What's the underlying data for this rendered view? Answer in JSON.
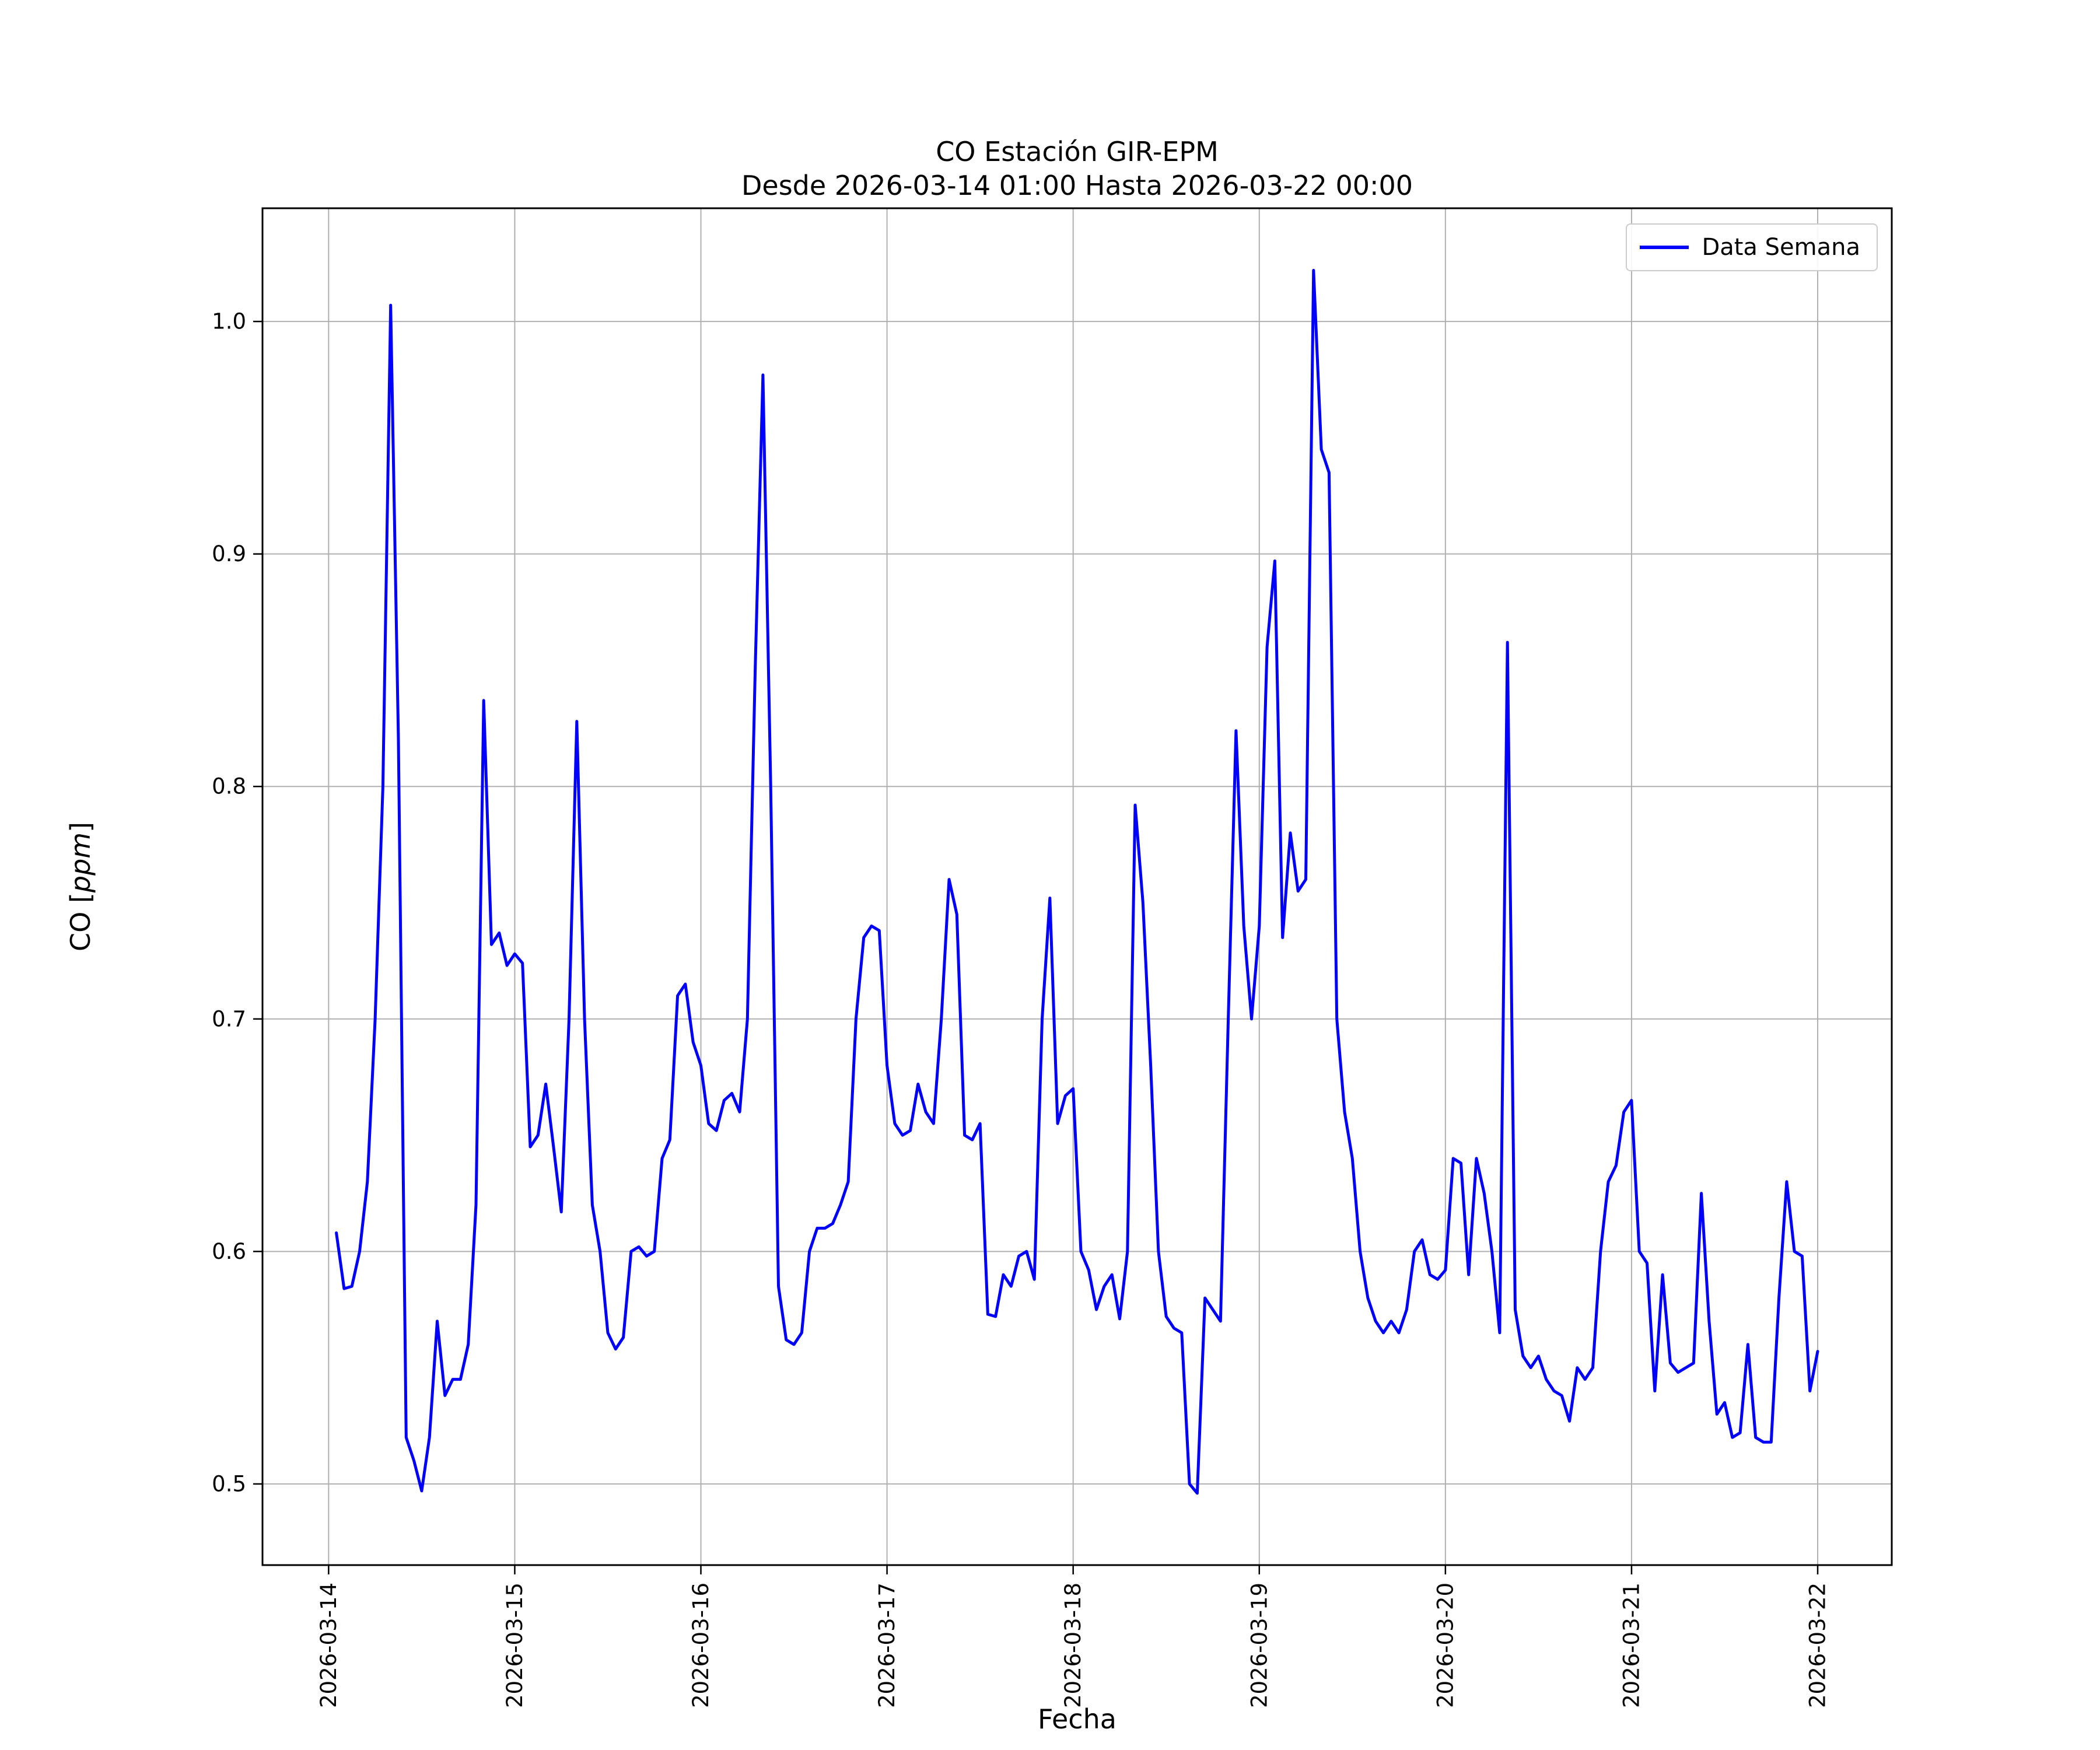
{
  "title_line1": "CO Estación GIR-EPM",
  "title_line2": "Desde 2026-03-14 01:00 Hasta 2026-03-22 00:00",
  "xlabel": "Fecha",
  "ylabel_prefix": "CO [",
  "ylabel_italic": "ppm",
  "ylabel_suffix": "]",
  "legend": {
    "label": "Data Semana"
  },
  "colors": {
    "line": "#0000ff",
    "grid": "#b0b0b0",
    "axis": "#000000",
    "legend_border": "#cccccc",
    "background": "#ffffff"
  },
  "chart_data": {
    "type": "line",
    "title": "CO Estación GIR-EPM — Desde 2026-03-14 01:00 Hasta 2026-03-22 00:00",
    "xlabel": "Fecha",
    "ylabel": "CO [ppm]",
    "legend_position": "upper right",
    "grid": true,
    "series_name": "Data Semana",
    "x_tick_labels": [
      "2026-03-14",
      "2026-03-15",
      "2026-03-16",
      "2026-03-17",
      "2026-03-18",
      "2026-03-19",
      "2026-03-20",
      "2026-03-21",
      "2026-03-22"
    ],
    "x_tick_days": [
      14,
      15,
      16,
      17,
      18,
      19,
      20,
      21,
      22
    ],
    "y_ticks": [
      0.5,
      0.6,
      0.7,
      0.8,
      0.9,
      1.0
    ],
    "xlim_days": [
      13.6448,
      22.3979
    ],
    "ylim": [
      0.4651,
      1.0487
    ],
    "x_unit": "hours since 2026-03-14 00:00, hourly samples from 01:00 on 03-14 to 00:00 on 03-22",
    "x_start_hour": 1,
    "values": [
      0.608,
      0.584,
      0.585,
      0.6,
      0.63,
      0.7,
      0.8,
      1.007,
      0.82,
      0.52,
      0.51,
      0.497,
      0.52,
      0.57,
      0.538,
      0.545,
      0.545,
      0.56,
      0.62,
      0.837,
      0.732,
      0.737,
      0.723,
      0.728,
      0.724,
      0.645,
      0.65,
      0.672,
      0.645,
      0.617,
      0.7,
      0.828,
      0.7,
      0.62,
      0.6,
      0.565,
      0.558,
      0.563,
      0.6,
      0.602,
      0.598,
      0.6,
      0.64,
      0.648,
      0.71,
      0.715,
      0.69,
      0.68,
      0.655,
      0.652,
      0.665,
      0.668,
      0.66,
      0.7,
      0.85,
      0.977,
      0.8,
      0.585,
      0.562,
      0.56,
      0.565,
      0.6,
      0.61,
      0.61,
      0.612,
      0.62,
      0.63,
      0.7,
      0.735,
      0.74,
      0.738,
      0.68,
      0.655,
      0.65,
      0.652,
      0.672,
      0.66,
      0.655,
      0.7,
      0.76,
      0.745,
      0.65,
      0.648,
      0.655,
      0.573,
      0.572,
      0.59,
      0.585,
      0.598,
      0.6,
      0.588,
      0.7,
      0.752,
      0.655,
      0.667,
      0.67,
      0.6,
      0.592,
      0.575,
      0.585,
      0.59,
      0.571,
      0.6,
      0.792,
      0.75,
      0.68,
      0.6,
      0.572,
      0.567,
      0.565,
      0.5,
      0.496,
      0.58,
      0.575,
      0.57,
      0.7,
      0.824,
      0.74,
      0.7,
      0.74,
      0.86,
      0.897,
      0.735,
      0.78,
      0.755,
      0.76,
      1.022,
      0.945,
      0.935,
      0.7,
      0.66,
      0.64,
      0.6,
      0.58,
      0.57,
      0.565,
      0.57,
      0.565,
      0.575,
      0.6,
      0.605,
      0.59,
      0.588,
      0.592,
      0.64,
      0.638,
      0.59,
      0.64,
      0.625,
      0.6,
      0.565,
      0.862,
      0.575,
      0.555,
      0.55,
      0.555,
      0.545,
      0.54,
      0.538,
      0.527,
      0.55,
      0.545,
      0.55,
      0.6,
      0.63,
      0.637,
      0.66,
      0.665,
      0.6,
      0.595,
      0.54,
      0.59,
      0.552,
      0.548,
      0.55,
      0.552,
      0.625,
      0.57,
      0.53,
      0.535,
      0.52,
      0.522,
      0.56,
      0.52,
      0.518,
      0.518,
      0.58,
      0.63,
      0.6,
      0.598,
      0.54,
      0.557
    ]
  }
}
